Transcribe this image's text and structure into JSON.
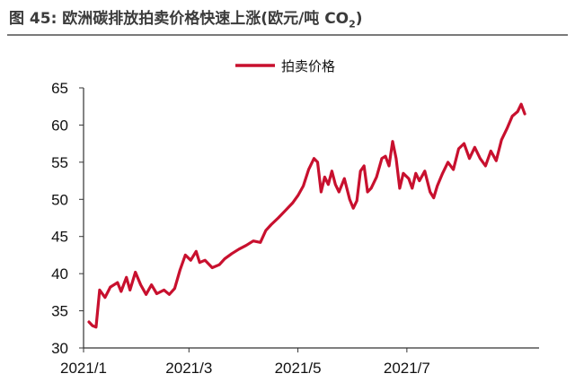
{
  "figure": {
    "title_prefix": "图 45:",
    "title_text": "欧洲碳排放拍卖价格快速上涨(欧元/吨",
    "title_co": " CO",
    "title_sub": "2",
    "title_close": ")"
  },
  "colors": {
    "line": "#c8102e",
    "axis": "#333333",
    "title": "#3b3b3b"
  },
  "chart_data": {
    "type": "line",
    "title": "欧洲碳排放拍卖价格快速上涨(欧元/吨 CO2)",
    "xlabel": "",
    "ylabel": "",
    "ylim": [
      30,
      65
    ],
    "yticks": [
      "30",
      "35",
      "40",
      "45",
      "50",
      "55",
      "60",
      "65"
    ],
    "xticks": [
      "2021/1",
      "2021/3",
      "2021/5",
      "2021/7"
    ],
    "legend_position": "top-center",
    "grid": false,
    "series": [
      {
        "name": "拍卖价格",
        "points": [
          [
            "2021-01-04",
            33.5
          ],
          [
            "2021-01-06",
            33.0
          ],
          [
            "2021-01-08",
            32.8
          ],
          [
            "2021-01-10",
            37.8
          ],
          [
            "2021-01-13",
            36.8
          ],
          [
            "2021-01-16",
            38.2
          ],
          [
            "2021-01-20",
            38.8
          ],
          [
            "2021-01-22",
            37.6
          ],
          [
            "2021-01-25",
            39.5
          ],
          [
            "2021-01-27",
            37.8
          ],
          [
            "2021-01-30",
            40.2
          ],
          [
            "2021-02-02",
            38.5
          ],
          [
            "2021-02-05",
            37.2
          ],
          [
            "2021-02-08",
            38.5
          ],
          [
            "2021-02-11",
            37.3
          ],
          [
            "2021-02-15",
            37.8
          ],
          [
            "2021-02-18",
            37.2
          ],
          [
            "2021-02-21",
            38.0
          ],
          [
            "2021-02-24",
            40.5
          ],
          [
            "2021-02-27",
            42.5
          ],
          [
            "2021-03-02",
            41.8
          ],
          [
            "2021-03-05",
            43.0
          ],
          [
            "2021-03-07",
            41.5
          ],
          [
            "2021-03-10",
            41.8
          ],
          [
            "2021-03-14",
            40.8
          ],
          [
            "2021-03-18",
            41.2
          ],
          [
            "2021-03-21",
            42.0
          ],
          [
            "2021-03-25",
            42.7
          ],
          [
            "2021-03-29",
            43.3
          ],
          [
            "2021-04-02",
            43.8
          ],
          [
            "2021-04-06",
            44.4
          ],
          [
            "2021-04-10",
            44.2
          ],
          [
            "2021-04-13",
            45.8
          ],
          [
            "2021-04-16",
            46.6
          ],
          [
            "2021-04-20",
            47.5
          ],
          [
            "2021-04-24",
            48.5
          ],
          [
            "2021-04-28",
            49.5
          ],
          [
            "2021-05-01",
            50.5
          ],
          [
            "2021-05-04",
            51.8
          ],
          [
            "2021-05-07",
            54.0
          ],
          [
            "2021-05-10",
            55.5
          ],
          [
            "2021-05-12",
            55.0
          ],
          [
            "2021-05-14",
            51.0
          ],
          [
            "2021-05-16",
            53.0
          ],
          [
            "2021-05-18",
            52.0
          ],
          [
            "2021-05-20",
            53.8
          ],
          [
            "2021-05-22",
            52.0
          ],
          [
            "2021-05-24",
            51.0
          ],
          [
            "2021-05-27",
            52.8
          ],
          [
            "2021-05-30",
            50.0
          ],
          [
            "2021-06-01",
            48.8
          ],
          [
            "2021-06-03",
            49.8
          ],
          [
            "2021-06-05",
            53.8
          ],
          [
            "2021-06-07",
            54.5
          ],
          [
            "2021-06-09",
            51.0
          ],
          [
            "2021-06-11",
            51.5
          ],
          [
            "2021-06-14",
            53.0
          ],
          [
            "2021-06-17",
            55.5
          ],
          [
            "2021-06-19",
            55.8
          ],
          [
            "2021-06-21",
            54.5
          ],
          [
            "2021-06-23",
            57.8
          ],
          [
            "2021-06-25",
            55.5
          ],
          [
            "2021-06-27",
            51.5
          ],
          [
            "2021-06-29",
            53.5
          ],
          [
            "2021-07-02",
            52.8
          ],
          [
            "2021-07-04",
            51.5
          ],
          [
            "2021-07-06",
            53.5
          ],
          [
            "2021-07-08",
            52.5
          ],
          [
            "2021-07-11",
            53.8
          ],
          [
            "2021-07-14",
            51.0
          ],
          [
            "2021-07-16",
            50.2
          ],
          [
            "2021-07-18",
            51.8
          ],
          [
            "2021-07-21",
            53.5
          ],
          [
            "2021-07-24",
            55.0
          ],
          [
            "2021-07-27",
            54.0
          ],
          [
            "2021-07-30",
            56.8
          ],
          [
            "2021-08-02",
            57.5
          ],
          [
            "2021-08-05",
            55.5
          ],
          [
            "2021-08-08",
            57.0
          ],
          [
            "2021-08-11",
            55.5
          ],
          [
            "2021-08-14",
            54.5
          ],
          [
            "2021-08-17",
            56.5
          ],
          [
            "2021-08-20",
            55.2
          ],
          [
            "2021-08-23",
            58.0
          ],
          [
            "2021-08-26",
            59.5
          ],
          [
            "2021-08-29",
            61.2
          ],
          [
            "2021-09-01",
            61.8
          ],
          [
            "2021-09-03",
            62.8
          ],
          [
            "2021-09-05",
            61.5
          ]
        ]
      }
    ]
  }
}
